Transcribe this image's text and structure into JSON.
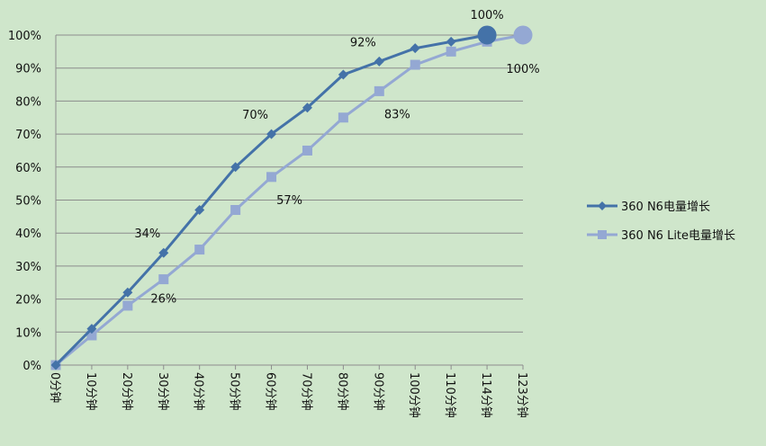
{
  "chart_data": {
    "type": "line",
    "title": "",
    "xlabel": "",
    "ylabel": "",
    "categories": [
      "0分钟",
      "10分钟",
      "20分钟",
      "30分钟",
      "40分钟",
      "50分钟",
      "60分钟",
      "70分钟",
      "80分钟",
      "90分钟",
      "100分钟",
      "110分钟",
      "114分钟",
      "123分钟"
    ],
    "y_ticks": [
      "0%",
      "10%",
      "20%",
      "30%",
      "40%",
      "50%",
      "60%",
      "70%",
      "80%",
      "90%",
      "100%"
    ],
    "ylim": [
      0,
      100
    ],
    "grid": true,
    "legend_position": "right",
    "series": [
      {
        "name": "360 N6电量增长",
        "color": "#4472a8",
        "marker": "diamond",
        "values": [
          0,
          11,
          22,
          34,
          47,
          60,
          70,
          78,
          88,
          92,
          96,
          98,
          100,
          null
        ],
        "final_marker": "large-circle",
        "data_labels": [
          {
            "index": 3,
            "text": "34%",
            "position": "above-left"
          },
          {
            "index": 6,
            "text": "70%",
            "position": "above-left"
          },
          {
            "index": 9,
            "text": "92%",
            "position": "above-left"
          },
          {
            "index": 12,
            "text": "100%",
            "position": "above"
          }
        ]
      },
      {
        "name": "360 N6 Lite电量增长",
        "color": "#94a8d3",
        "marker": "square",
        "values": [
          0,
          9,
          18,
          26,
          35,
          47,
          57,
          65,
          75,
          83,
          91,
          95,
          98,
          100
        ],
        "final_marker": "large-circle",
        "data_labels": [
          {
            "index": 3,
            "text": "26%",
            "position": "below"
          },
          {
            "index": 6,
            "text": "57%",
            "position": "below-right"
          },
          {
            "index": 9,
            "text": "83%",
            "position": "below-right"
          },
          {
            "index": 13,
            "text": "100%",
            "position": "below"
          }
        ]
      }
    ]
  }
}
